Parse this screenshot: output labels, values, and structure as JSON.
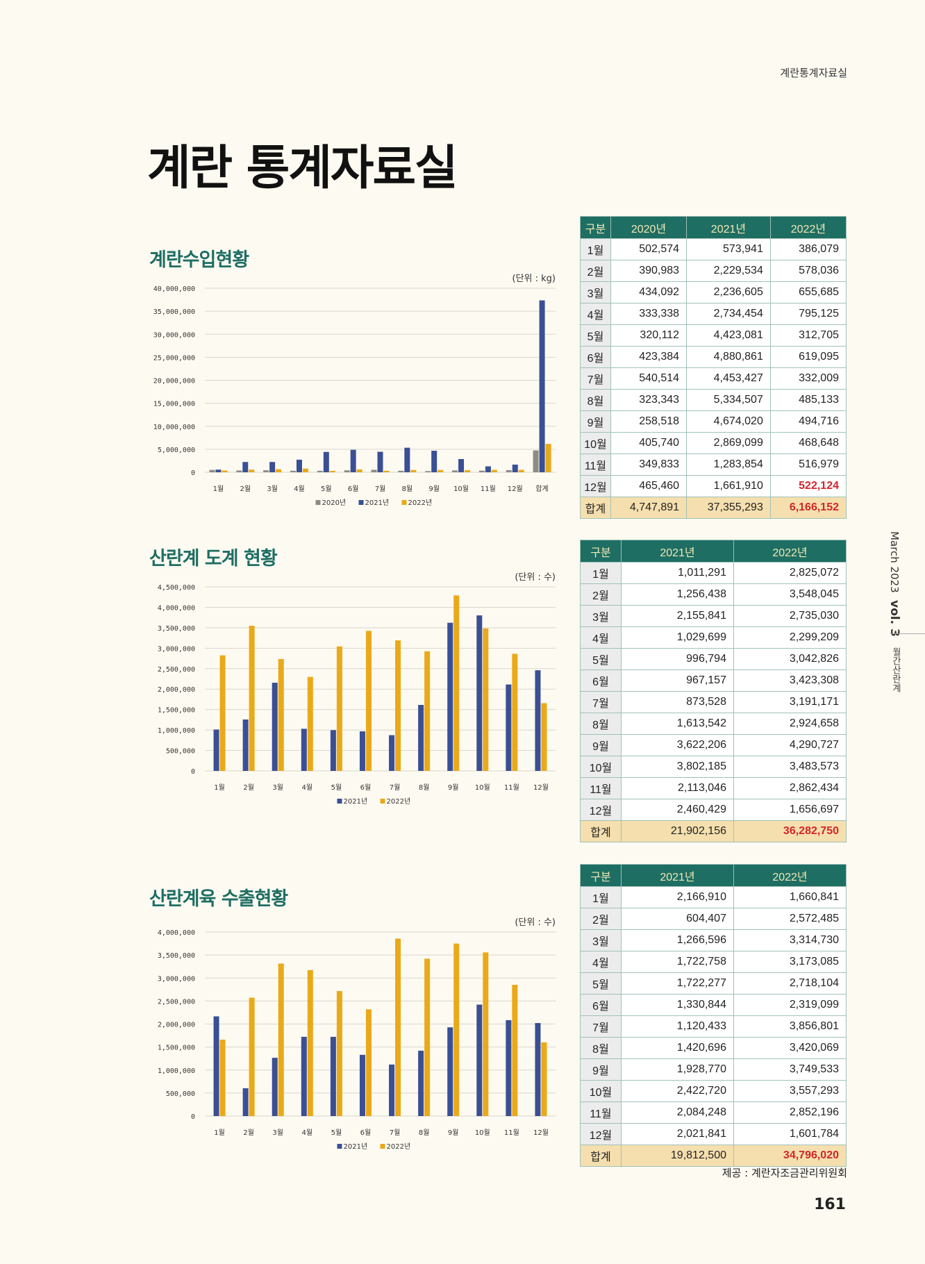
{
  "header": {
    "running_title": "계란통계자료실",
    "page_title": "계란 통계자료실"
  },
  "sidebar": {
    "issue": "March 2023",
    "volume": "vol. 3",
    "magazine": "월간산란계"
  },
  "footer": {
    "credit": "제공 : 계란자조금관리위원회",
    "page_number": "161"
  },
  "colors": {
    "accent": "#1e6e63",
    "y2020": "#8c8c84",
    "y2021": "#3a4f94",
    "y2022": "#eaa919",
    "highlight": "#d1262b"
  },
  "sections": [
    {
      "title": "계란수입현황",
      "unit": "(단위 : kg)",
      "table": {
        "headers": [
          "구분",
          "2020년",
          "2021년",
          "2022년"
        ],
        "rows": [
          [
            "1월",
            "502,574",
            "573,941",
            "386,079"
          ],
          [
            "2월",
            "390,983",
            "2,229,534",
            "578,036"
          ],
          [
            "3월",
            "434,092",
            "2,236,605",
            "655,685"
          ],
          [
            "4월",
            "333,338",
            "2,734,454",
            "795,125"
          ],
          [
            "5월",
            "320,112",
            "4,423,081",
            "312,705"
          ],
          [
            "6월",
            "423,384",
            "4,880,861",
            "619,095"
          ],
          [
            "7월",
            "540,514",
            "4,453,427",
            "332,009"
          ],
          [
            "8월",
            "323,343",
            "5,334,507",
            "485,133"
          ],
          [
            "9월",
            "258,518",
            "4,674,020",
            "494,716"
          ],
          [
            "10월",
            "405,740",
            "2,869,099",
            "468,648"
          ],
          [
            "11월",
            "349,833",
            "1,283,854",
            "516,979"
          ],
          [
            "12월",
            "465,460",
            "1,661,910",
            "522,124"
          ],
          [
            "합계",
            "4,747,891",
            "37,355,293",
            "6,166,152"
          ]
        ],
        "highlight_cells": [
          [
            11,
            3
          ],
          [
            12,
            3
          ]
        ]
      }
    },
    {
      "title": "산란계 도계 현황",
      "unit": "(단위 : 수)",
      "table": {
        "headers": [
          "구분",
          "2021년",
          "2022년"
        ],
        "rows": [
          [
            "1월",
            "1,011,291",
            "2,825,072"
          ],
          [
            "2월",
            "1,256,438",
            "3,548,045"
          ],
          [
            "3월",
            "2,155,841",
            "2,735,030"
          ],
          [
            "4월",
            "1,029,699",
            "2,299,209"
          ],
          [
            "5월",
            "996,794",
            "3,042,826"
          ],
          [
            "6월",
            "967,157",
            "3,423,308"
          ],
          [
            "7월",
            "873,528",
            "3,191,171"
          ],
          [
            "8월",
            "1,613,542",
            "2,924,658"
          ],
          [
            "9월",
            "3,622,206",
            "4,290,727"
          ],
          [
            "10월",
            "3,802,185",
            "3,483,573"
          ],
          [
            "11월",
            "2,113,046",
            "2,862,434"
          ],
          [
            "12월",
            "2,460,429",
            "1,656,697"
          ],
          [
            "합계",
            "21,902,156",
            "36,282,750"
          ]
        ],
        "highlight_cells": [
          [
            12,
            2
          ]
        ]
      }
    },
    {
      "title": "산란계육 수출현황",
      "unit": "(단위 : 수)",
      "table": {
        "headers": [
          "구분",
          "2021년",
          "2022년"
        ],
        "rows": [
          [
            "1월",
            "2,166,910",
            "1,660,841"
          ],
          [
            "2월",
            "604,407",
            "2,572,485"
          ],
          [
            "3월",
            "1,266,596",
            "3,314,730"
          ],
          [
            "4월",
            "1,722,758",
            "3,173,085"
          ],
          [
            "5월",
            "1,722,277",
            "2,718,104"
          ],
          [
            "6월",
            "1,330,844",
            "2,319,099"
          ],
          [
            "7월",
            "1,120,433",
            "3,856,801"
          ],
          [
            "8월",
            "1,420,696",
            "3,420,069"
          ],
          [
            "9월",
            "1,928,770",
            "3,749,533"
          ],
          [
            "10월",
            "2,422,720",
            "3,557,293"
          ],
          [
            "11월",
            "2,084,248",
            "2,852,196"
          ],
          [
            "12월",
            "2,021,841",
            "1,601,784"
          ],
          [
            "합계",
            "19,812,500",
            "34,796,020"
          ]
        ],
        "highlight_cells": [
          [
            12,
            2
          ]
        ]
      }
    }
  ],
  "chart_data": [
    {
      "type": "bar",
      "title": "계란수입현황",
      "ylim": [
        0,
        40000000
      ],
      "ytick_step": 5000000,
      "legend": "bottom",
      "grid": true,
      "categories": [
        "1월",
        "2월",
        "3월",
        "4월",
        "5월",
        "6월",
        "7월",
        "8월",
        "9월",
        "10월",
        "11월",
        "12월",
        "합계"
      ],
      "series": [
        {
          "name": "2020년",
          "color": "#8c8c84",
          "values": [
            502574,
            390983,
            434092,
            333338,
            320112,
            423384,
            540514,
            323343,
            258518,
            405740,
            349833,
            465460,
            4747891
          ]
        },
        {
          "name": "2021년",
          "color": "#3a4f94",
          "values": [
            573941,
            2229534,
            2236605,
            2734454,
            4423081,
            4880861,
            4453427,
            5334507,
            4674020,
            2869099,
            1283854,
            1661910,
            37355293
          ]
        },
        {
          "name": "2022년",
          "color": "#eaa919",
          "values": [
            386079,
            578036,
            655685,
            795125,
            312705,
            619095,
            332009,
            485133,
            494716,
            468648,
            516979,
            522124,
            6166152
          ]
        }
      ]
    },
    {
      "type": "bar",
      "title": "산란계 도계 현황",
      "ylim": [
        0,
        4500000
      ],
      "ytick_step": 500000,
      "legend": "bottom",
      "grid": true,
      "categories": [
        "1월",
        "2월",
        "3월",
        "4월",
        "5월",
        "6월",
        "7월",
        "8월",
        "9월",
        "10월",
        "11월",
        "12월"
      ],
      "series": [
        {
          "name": "2021년",
          "color": "#3a4f94",
          "values": [
            1011291,
            1256438,
            2155841,
            1029699,
            996794,
            967157,
            873528,
            1613542,
            3622206,
            3802185,
            2113046,
            2460429
          ]
        },
        {
          "name": "2022년",
          "color": "#eaa919",
          "values": [
            2825072,
            3548045,
            2735030,
            2299209,
            3042826,
            3423308,
            3191171,
            2924658,
            4290727,
            3483573,
            2862434,
            1656697
          ]
        }
      ]
    },
    {
      "type": "bar",
      "title": "산란계육 수출현황",
      "ylim": [
        0,
        4000000
      ],
      "ytick_step": 500000,
      "legend": "bottom",
      "grid": true,
      "categories": [
        "1월",
        "2월",
        "3월",
        "4월",
        "5월",
        "6월",
        "7월",
        "8월",
        "9월",
        "10월",
        "11월",
        "12월"
      ],
      "series": [
        {
          "name": "2021년",
          "color": "#3a4f94",
          "values": [
            2166910,
            604407,
            1266596,
            1722758,
            1722277,
            1330844,
            1120433,
            1420696,
            1928770,
            2422720,
            2084248,
            2021841
          ]
        },
        {
          "name": "2022년",
          "color": "#eaa919",
          "values": [
            1660841,
            2572485,
            3314730,
            3173085,
            2718104,
            2319099,
            3856801,
            3420069,
            3749533,
            3557293,
            2852196,
            1601784
          ]
        }
      ]
    }
  ]
}
